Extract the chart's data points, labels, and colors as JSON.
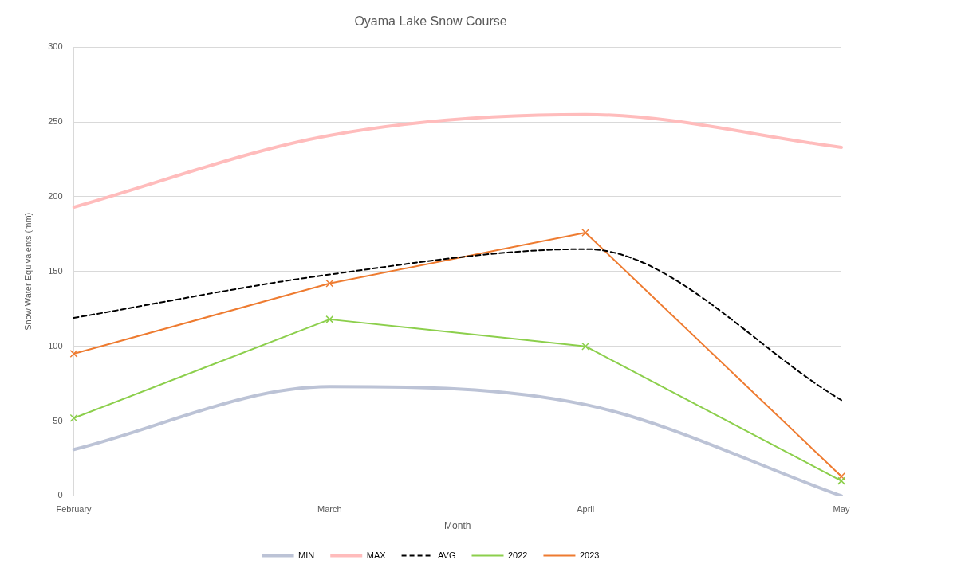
{
  "chart_data": {
    "type": "line",
    "title": "Oyama Lake Snow Course",
    "xlabel": "Month",
    "ylabel": "Snow Water Equivalents (mm)",
    "categories": [
      "February",
      "March",
      "April",
      "May"
    ],
    "series": [
      {
        "name": "MIN",
        "color": "#bcc3d6",
        "values": [
          31,
          73,
          61,
          0
        ],
        "marker": "none",
        "line_style": "solid"
      },
      {
        "name": "MAX",
        "color": "#ffbcbc",
        "values": [
          193,
          241,
          255,
          233
        ],
        "marker": "none",
        "line_style": "solid"
      },
      {
        "name": "AVG",
        "color": "#000000",
        "values": [
          119,
          148,
          165,
          64
        ],
        "marker": "none",
        "line_style": "dashed"
      },
      {
        "name": "2022",
        "color": "#8ccf4c",
        "values": [
          52,
          118,
          100,
          10
        ],
        "marker": "cross",
        "line_style": "solid"
      },
      {
        "name": "2023",
        "color": "#ee7b30",
        "values": [
          95,
          142,
          176,
          13
        ],
        "marker": "cross",
        "line_style": "solid"
      }
    ],
    "ylim": [
      0,
      300
    ],
    "yticks": [
      0,
      50,
      100,
      150,
      200,
      250,
      300
    ],
    "grid": "y",
    "legend": "bottom"
  }
}
